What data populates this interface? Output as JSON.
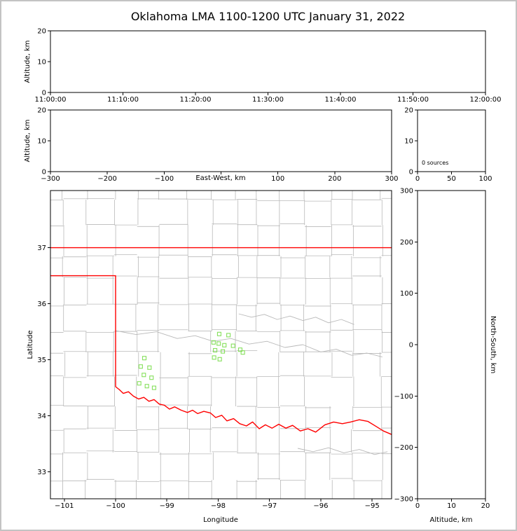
{
  "page": {
    "title": "Oklahoma LMA 1100-1200 UTC January 31, 2022"
  },
  "colors": {
    "state_border": "#ff0000",
    "county_line": "#b9b9b9",
    "river_line": "#b9b9b9",
    "station_marker": "#86e05c",
    "axis": "#000000",
    "text": "#000000",
    "frame": "#c3c3c3",
    "background": "#ffffff"
  },
  "chart_data": [
    {
      "id": "time_height_panel",
      "type": "scatter",
      "ylabel": "Altitude, km",
      "xlim": [
        0,
        6
      ],
      "ylim": [
        0,
        20
      ],
      "xticks": [
        0,
        1,
        2,
        3,
        4,
        5,
        6
      ],
      "xtick_labels": [
        "11:00:00",
        "11:10:00",
        "11:20:00",
        "11:30:00",
        "11:40:00",
        "11:50:00",
        "12:00:00"
      ],
      "yticks": [
        0,
        10,
        20
      ],
      "ytick_labels": [
        "0",
        "10",
        "20"
      ],
      "points": []
    },
    {
      "id": "east_west_height_panel",
      "type": "scatter",
      "xlabel": "East-West, km",
      "ylabel": "Altitude, km",
      "xlim": [
        -300,
        300
      ],
      "ylim": [
        0,
        20
      ],
      "xticks": [
        -300,
        -200,
        -100,
        0,
        100,
        200,
        300
      ],
      "xtick_labels": [
        "−300",
        "−200",
        "−100",
        "",
        "100",
        "200",
        "300"
      ],
      "yticks": [
        0,
        10,
        20
      ],
      "ytick_labels": [
        "0",
        "10",
        "20"
      ],
      "points": []
    },
    {
      "id": "altitude_histogram_panel",
      "type": "histogram",
      "annotation": "0 sources",
      "xlim": [
        0,
        100
      ],
      "ylim": [
        0,
        20
      ],
      "xticks": [
        0,
        50,
        100
      ],
      "xtick_labels": [
        "0",
        "50",
        "100"
      ],
      "yticks": [
        0,
        10,
        20
      ],
      "ytick_labels": [
        "0",
        "10",
        "20"
      ],
      "points": []
    },
    {
      "id": "plan_view_panel",
      "type": "map",
      "xlabel": "Longitude",
      "ylabel": "Latitude",
      "xlim": [
        -101.27,
        -94.62
      ],
      "ylim": [
        32.52,
        38.02
      ],
      "xticks": [
        -101,
        -100,
        -99,
        -98,
        -97,
        -96,
        -95
      ],
      "xtick_labels": [
        "−101",
        "−100",
        "−99",
        "−98",
        "−97",
        "−96",
        "−95"
      ],
      "yticks": [
        33,
        34,
        35,
        36,
        37
      ],
      "ytick_labels": [
        "33",
        "34",
        "35",
        "36",
        "37"
      ],
      "marker": "open-square",
      "stations": [
        [
          -99.44,
          35.03
        ],
        [
          -99.51,
          34.88
        ],
        [
          -99.34,
          34.86
        ],
        [
          -99.45,
          34.73
        ],
        [
          -99.3,
          34.68
        ],
        [
          -99.54,
          34.58
        ],
        [
          -99.39,
          34.53
        ],
        [
          -99.25,
          34.5
        ],
        [
          -97.98,
          35.46
        ],
        [
          -97.8,
          35.44
        ],
        [
          -98.09,
          35.31
        ],
        [
          -97.99,
          35.29
        ],
        [
          -97.88,
          35.26
        ],
        [
          -97.71,
          35.25
        ],
        [
          -98.06,
          35.17
        ],
        [
          -97.91,
          35.15
        ],
        [
          -98.08,
          35.04
        ],
        [
          -97.97,
          35.01
        ],
        [
          -97.57,
          35.18
        ],
        [
          -97.52,
          35.13
        ]
      ],
      "state_border": {
        "north": [
          [
            -101.3,
            37.0
          ],
          [
            -94.6,
            37.0
          ]
        ],
        "west_and_red_river": [
          [
            -101.3,
            36.5
          ],
          [
            -100.0,
            36.5
          ],
          [
            -100.0,
            34.52
          ],
          [
            -99.93,
            34.47
          ],
          [
            -99.85,
            34.4
          ],
          [
            -99.75,
            34.43
          ],
          [
            -99.65,
            34.35
          ],
          [
            -99.55,
            34.3
          ],
          [
            -99.45,
            34.33
          ],
          [
            -99.35,
            34.26
          ],
          [
            -99.25,
            34.29
          ],
          [
            -99.15,
            34.21
          ],
          [
            -99.05,
            34.19
          ],
          [
            -98.95,
            34.12
          ],
          [
            -98.85,
            34.16
          ],
          [
            -98.72,
            34.1
          ],
          [
            -98.6,
            34.06
          ],
          [
            -98.5,
            34.1
          ],
          [
            -98.4,
            34.04
          ],
          [
            -98.28,
            34.08
          ],
          [
            -98.15,
            34.05
          ],
          [
            -98.05,
            33.97
          ],
          [
            -97.93,
            34.01
          ],
          [
            -97.83,
            33.91
          ],
          [
            -97.7,
            33.95
          ],
          [
            -97.58,
            33.86
          ],
          [
            -97.45,
            33.82
          ],
          [
            -97.33,
            33.89
          ],
          [
            -97.2,
            33.77
          ],
          [
            -97.08,
            33.84
          ],
          [
            -96.95,
            33.78
          ],
          [
            -96.82,
            33.85
          ],
          [
            -96.68,
            33.78
          ],
          [
            -96.55,
            33.83
          ],
          [
            -96.4,
            33.73
          ],
          [
            -96.25,
            33.77
          ],
          [
            -96.1,
            33.71
          ],
          [
            -95.92,
            33.84
          ],
          [
            -95.75,
            33.89
          ],
          [
            -95.58,
            33.86
          ],
          [
            -95.42,
            33.89
          ],
          [
            -95.25,
            33.93
          ],
          [
            -95.08,
            33.9
          ],
          [
            -94.92,
            33.81
          ],
          [
            -94.78,
            33.73
          ],
          [
            -94.6,
            33.66
          ]
        ]
      },
      "rivers": [
        [
          [
            -100.0,
            35.52
          ],
          [
            -99.6,
            35.45
          ],
          [
            -99.2,
            35.5
          ],
          [
            -98.8,
            35.38
          ],
          [
            -98.45,
            35.43
          ],
          [
            -98.1,
            35.33
          ],
          [
            -97.75,
            35.38
          ],
          [
            -97.4,
            35.28
          ],
          [
            -97.05,
            35.33
          ],
          [
            -96.7,
            35.22
          ],
          [
            -96.35,
            35.27
          ],
          [
            -96.0,
            35.14
          ],
          [
            -95.7,
            35.19
          ],
          [
            -95.4,
            35.08
          ],
          [
            -95.1,
            35.12
          ],
          [
            -94.8,
            35.05
          ]
        ],
        [
          [
            -97.6,
            35.82
          ],
          [
            -97.35,
            35.76
          ],
          [
            -97.1,
            35.81
          ],
          [
            -96.85,
            35.72
          ],
          [
            -96.6,
            35.78
          ],
          [
            -96.35,
            35.7
          ],
          [
            -96.1,
            35.76
          ],
          [
            -95.85,
            35.66
          ],
          [
            -95.6,
            35.72
          ],
          [
            -95.35,
            35.63
          ]
        ],
        [
          [
            -96.45,
            33.42
          ],
          [
            -96.15,
            33.36
          ],
          [
            -95.85,
            33.43
          ],
          [
            -95.55,
            33.34
          ],
          [
            -95.25,
            33.4
          ],
          [
            -94.95,
            33.31
          ],
          [
            -94.7,
            33.36
          ]
        ]
      ],
      "counties": {
        "seed": 11,
        "lon_start": -101.45,
        "lat_start": 32.4,
        "dlon": 0.47,
        "dlat": 0.45,
        "cols": 16,
        "rows": 13,
        "jitter": 0.12,
        "edge_jitter": 0.06,
        "skip": 0.1
      }
    },
    {
      "id": "north_south_altitude_panel",
      "type": "scatter",
      "xlabel": "Altitude, km",
      "ylabel": "North-South, km",
      "xlim": [
        0,
        20
      ],
      "ylim": [
        -300,
        300
      ],
      "xticks": [
        0,
        10,
        20
      ],
      "xtick_labels": [
        "0",
        "10",
        "20"
      ],
      "yticks": [
        -300,
        -200,
        -100,
        0,
        100,
        200,
        300
      ],
      "ytick_labels": [
        "−300",
        "−200",
        "−100",
        "0",
        "100",
        "200",
        "300"
      ],
      "points": []
    }
  ]
}
